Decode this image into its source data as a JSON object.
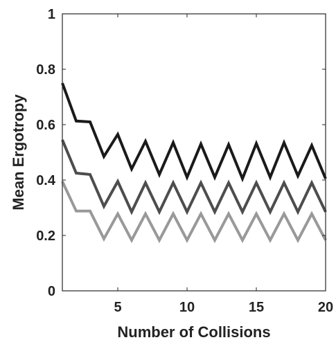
{
  "chart_data": {
    "type": "line",
    "title": "",
    "xlabel": "Number of Collisions",
    "ylabel": "Mean Ergotropy",
    "xlim": [
      1,
      20
    ],
    "ylim": [
      0,
      1
    ],
    "xticks": [
      5,
      10,
      15,
      20
    ],
    "yticks": [
      0,
      0.2,
      0.4,
      0.6,
      0.8,
      1
    ],
    "ytick_labels": [
      "0",
      "0.2",
      "0.4",
      "0.6",
      "0.8",
      "1"
    ],
    "grid": false,
    "legend": "none",
    "x": [
      1,
      2,
      3,
      4,
      5,
      6,
      7,
      8,
      9,
      10,
      11,
      12,
      13,
      14,
      15,
      16,
      17,
      18,
      19,
      20
    ],
    "series": [
      {
        "color": "#1a1a1a",
        "values": [
          0.75,
          0.613,
          0.61,
          0.485,
          0.565,
          0.44,
          0.54,
          0.42,
          0.535,
          0.41,
          0.53,
          0.41,
          0.528,
          0.405,
          0.532,
          0.41,
          0.535,
          0.415,
          0.525,
          0.405
        ]
      },
      {
        "color": "#4d4d4d",
        "values": [
          0.545,
          0.425,
          0.42,
          0.305,
          0.395,
          0.285,
          0.39,
          0.285,
          0.39,
          0.285,
          0.39,
          0.285,
          0.39,
          0.285,
          0.39,
          0.285,
          0.39,
          0.285,
          0.39,
          0.285
        ]
      },
      {
        "color": "#999999",
        "values": [
          0.395,
          0.288,
          0.288,
          0.188,
          0.278,
          0.183,
          0.278,
          0.183,
          0.278,
          0.183,
          0.278,
          0.183,
          0.278,
          0.183,
          0.278,
          0.183,
          0.278,
          0.183,
          0.278,
          0.183
        ]
      }
    ]
  }
}
